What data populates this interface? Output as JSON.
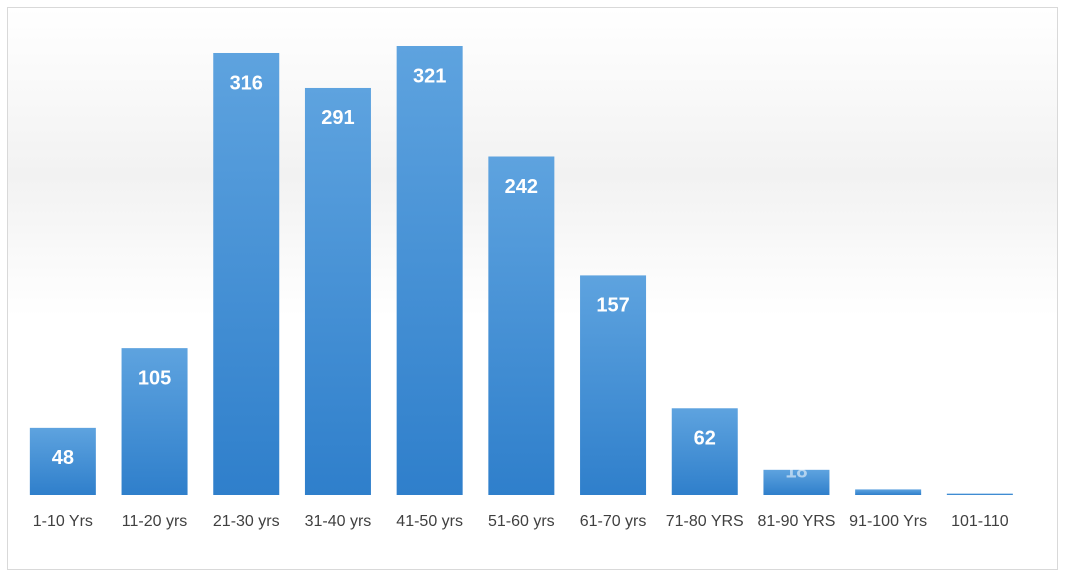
{
  "chart_data": {
    "type": "bar",
    "categories": [
      "1-10 Yrs",
      "11-20 yrs",
      "21-30 yrs",
      "31-40 yrs",
      "41-50 yrs",
      "51-60 yrs",
      "61-70 yrs",
      "71-80 YRS",
      "81-90 YRS",
      "91-100 Yrs",
      "101-110"
    ],
    "values": [
      48,
      105,
      316,
      291,
      321,
      242,
      157,
      62,
      18,
      4,
      1
    ],
    "color": "#4a90d6"
  }
}
